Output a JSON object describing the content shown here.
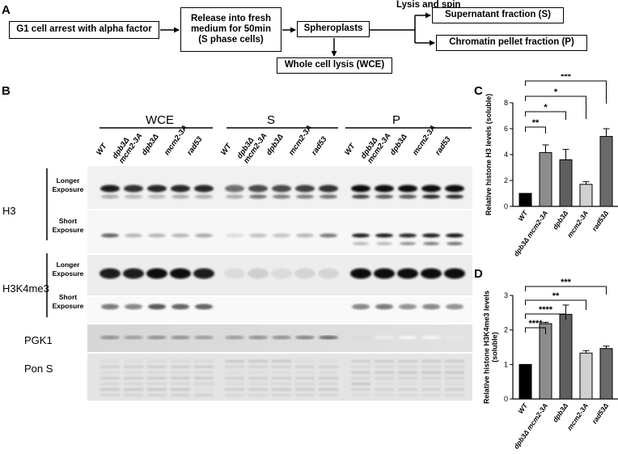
{
  "panels": {
    "A": "A",
    "B": "B",
    "C": "C",
    "D": "D"
  },
  "flow": {
    "g1": "G1 cell arrest with alpha factor",
    "release": "Release into fresh\nmedium for 50min\n(S phase cells)",
    "spheroplasts": "Spheroplasts",
    "lysis_spin": "Lysis and spin",
    "supernatant": "Supernatant fraction (S)",
    "chromatin": "Chromatin pellet fraction (P)",
    "wce": "Whole cell lysis (WCE)"
  },
  "blot": {
    "groups": [
      "WCE",
      "S",
      "P"
    ],
    "lanes": [
      "WT",
      "dpb3Δ\nmcm2-3A",
      "dpb3Δ",
      "mcm2-3A",
      "rad53"
    ],
    "rows": {
      "h3": "H3",
      "h3k4me3": "H3K4me3",
      "pgk1": "PGK1",
      "pons": "Pon S",
      "longer": "Longer\nExposure",
      "short": "Short\nExposure"
    }
  },
  "chart_data": [
    {
      "type": "bar",
      "panel": "C",
      "categories": [
        "WT",
        "dpb3Δ mcm2-3A",
        "dpb3Δ",
        "mcm2-3A",
        "rad53Δ"
      ],
      "values": [
        1.0,
        4.15,
        3.6,
        1.7,
        5.4
      ],
      "errors": [
        0.0,
        0.6,
        0.8,
        0.2,
        0.6
      ],
      "ylabel": "Relative histone H3 levels (soluble)",
      "ylim": [
        0,
        8
      ],
      "yticks": [
        0,
        2,
        4,
        6,
        8
      ],
      "significance": [
        {
          "label": "**",
          "from": 0,
          "to": 1
        },
        {
          "label": "*",
          "from": 0,
          "to": 2
        },
        {
          "label": "*",
          "from": 0,
          "to": 3
        },
        {
          "label": "***",
          "from": 0,
          "to": 4
        }
      ],
      "colors": [
        "#000000",
        "#8c8c8c",
        "#5f5f5f",
        "#d0d0d0",
        "#6a6a6a"
      ]
    },
    {
      "type": "bar",
      "panel": "D",
      "categories": [
        "WT",
        "dpb3Δ mcm2-3A",
        "dpb3Δ",
        "mcm2-3A",
        "rad53Δ"
      ],
      "values": [
        1.0,
        2.18,
        2.45,
        1.33,
        1.46
      ],
      "errors": [
        0.0,
        0.04,
        0.27,
        0.07,
        0.07
      ],
      "ylabel": "Relative histone H3K4me3 levels (soluble)",
      "ylim": [
        0,
        3
      ],
      "yticks": [
        0,
        1,
        2,
        3
      ],
      "significance": [
        {
          "label": "****",
          "from": 0,
          "to": 1
        },
        {
          "label": "****",
          "from": 0,
          "to": 2
        },
        {
          "label": "**",
          "from": 0,
          "to": 3
        },
        {
          "label": "***",
          "from": 0,
          "to": 4
        }
      ],
      "colors": [
        "#000000",
        "#8c8c8c",
        "#5f5f5f",
        "#d0d0d0",
        "#6a6a6a"
      ]
    }
  ]
}
